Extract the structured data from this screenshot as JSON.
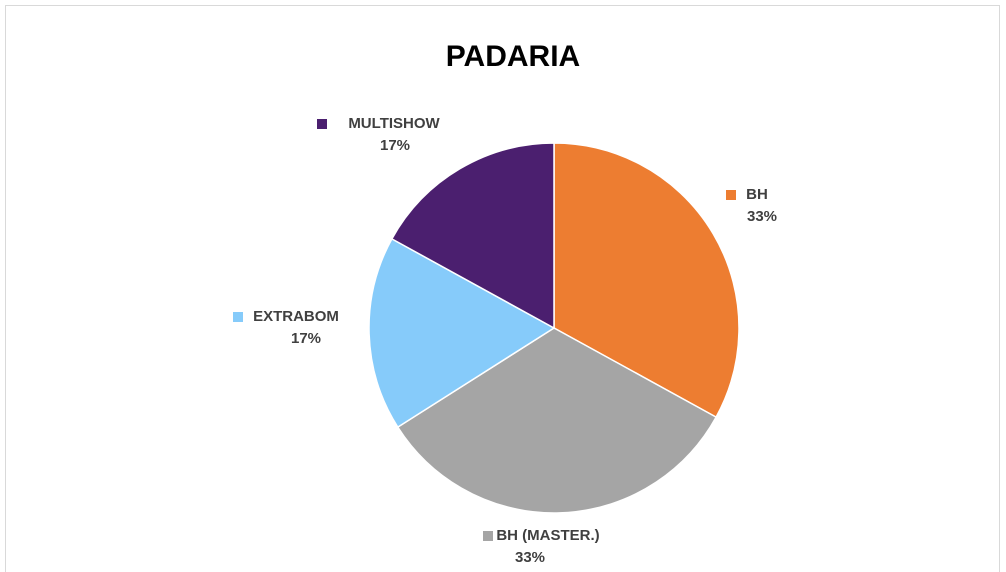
{
  "chart_data": {
    "type": "pie",
    "title": "PADARIA",
    "categories": [
      "BH",
      "BH (MASTER.)",
      "EXTRABOM",
      "MULTISHOW"
    ],
    "values": [
      33,
      33,
      17,
      17
    ],
    "value_labels": [
      "33%",
      "33%",
      "17%",
      "17%"
    ],
    "colors": [
      "#ED7D31",
      "#A5A5A5",
      "#86CBFA",
      "#4B1F6F"
    ]
  }
}
